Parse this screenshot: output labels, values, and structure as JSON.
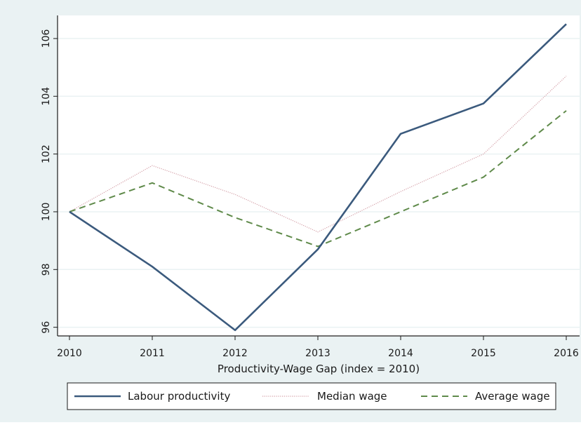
{
  "chart_data": {
    "type": "line",
    "title": "",
    "xlabel": "Productivity-Wage Gap (index = 2010)",
    "ylabel": "",
    "x": [
      2010,
      2011,
      2012,
      2013,
      2014,
      2015,
      2016
    ],
    "x_tick_labels": [
      "2010",
      "2011",
      "2012",
      "2013",
      "2014",
      "2015",
      "2016"
    ],
    "y_ticks": [
      96,
      98,
      100,
      102,
      104,
      106
    ],
    "y_tick_labels": [
      "96",
      "98",
      "100",
      "102",
      "104",
      "106"
    ],
    "ylim": [
      95.7,
      106.8
    ],
    "xlim": [
      2010,
      2016
    ],
    "grid": "horizontal",
    "legend_position": "bottom",
    "series": [
      {
        "name": "Labour productivity",
        "style": "solid",
        "color": "#3b5a7d",
        "values": [
          100.0,
          98.1,
          95.9,
          98.7,
          102.7,
          103.75,
          106.5
        ]
      },
      {
        "name": "Median wage",
        "style": "dotted",
        "color": "#d4a0a8",
        "values": [
          100.0,
          101.6,
          100.6,
          99.3,
          100.7,
          102.0,
          104.7
        ]
      },
      {
        "name": "Average wage",
        "style": "dashed",
        "color": "#5f8a4a",
        "values": [
          100.0,
          101.0,
          99.8,
          98.8,
          100.0,
          101.2,
          103.5
        ]
      }
    ],
    "colors": {
      "plot_background": "#ffffff",
      "outer_background": "#eaf2f3",
      "grid": "#eaf2f3",
      "axis": "#1a1a1a"
    }
  }
}
